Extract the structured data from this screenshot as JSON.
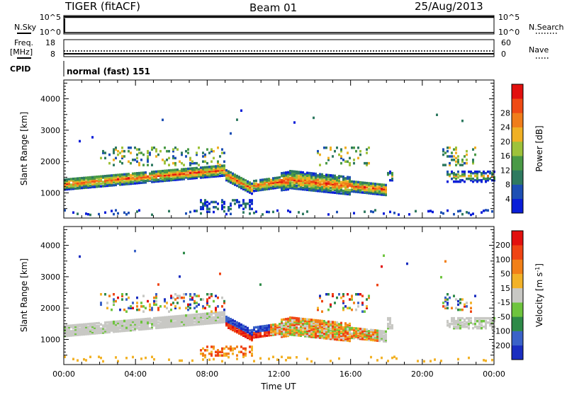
{
  "header": {
    "radar": "TIGER (fitACF)",
    "beam": "Beam 01",
    "date": "25/Aug/2013"
  },
  "top_panels": {
    "nsky": {
      "label": "N.Sky",
      "ticks": [
        "10^5",
        "10^0"
      ]
    },
    "nsearch": {
      "label": "N.Search",
      "ticks": [
        "10^5",
        "10^0"
      ]
    },
    "freq": {
      "label": "Freq.",
      "unit": "[MHz]",
      "ticks": [
        "18",
        "8"
      ]
    },
    "nave": {
      "label": "Nave",
      "ticks": [
        "60",
        "0"
      ]
    },
    "cpid": {
      "label": "CPID",
      "value": "normal (fast) 151"
    }
  },
  "chart_data": [
    {
      "type": "heatmap",
      "title": "",
      "xlabel": "",
      "ylabel": "Slant Range [km]",
      "x_ticks": [
        "00:00",
        "04:00",
        "08:00",
        "12:00",
        "16:00",
        "20:00",
        "00:00"
      ],
      "y_ticks": [
        1000,
        2000,
        3000,
        4000
      ],
      "ylim": [
        200,
        4600
      ],
      "xlim_hours": [
        0,
        24
      ],
      "colorbar": {
        "label": "Power [dB]",
        "ticks": [
          "4",
          "8",
          "12",
          "16",
          "20",
          "24",
          "28"
        ],
        "colors": [
          "#0a1ed8",
          "#1d4fb4",
          "#2e7a60",
          "#4a9a46",
          "#9ec23a",
          "#f0b024",
          "#f07d1a",
          "#ef4a14",
          "#e2100e"
        ]
      }
    },
    {
      "type": "heatmap",
      "title": "",
      "xlabel": "Time UT",
      "ylabel": "Slant Range [km]",
      "x_ticks": [
        "00:00",
        "04:00",
        "08:00",
        "12:00",
        "16:00",
        "20:00",
        "00:00"
      ],
      "y_ticks": [
        1000,
        2000,
        3000,
        4000
      ],
      "ylim": [
        200,
        4600
      ],
      "xlim_hours": [
        0,
        24
      ],
      "colorbar": {
        "label": "Velocity [m s",
        "label_sup": "-1",
        "label_end": "]",
        "ticks": [
          "200",
          "100",
          "50",
          "15",
          "-15",
          "-50",
          "-100",
          "-200"
        ],
        "colors": [
          "#1a2ec0",
          "#3a62c8",
          "#2e8a48",
          "#6ec43e",
          "#c8c8c4",
          "#f2b228",
          "#f28018",
          "#ef4414",
          "#e2100e"
        ]
      }
    }
  ]
}
